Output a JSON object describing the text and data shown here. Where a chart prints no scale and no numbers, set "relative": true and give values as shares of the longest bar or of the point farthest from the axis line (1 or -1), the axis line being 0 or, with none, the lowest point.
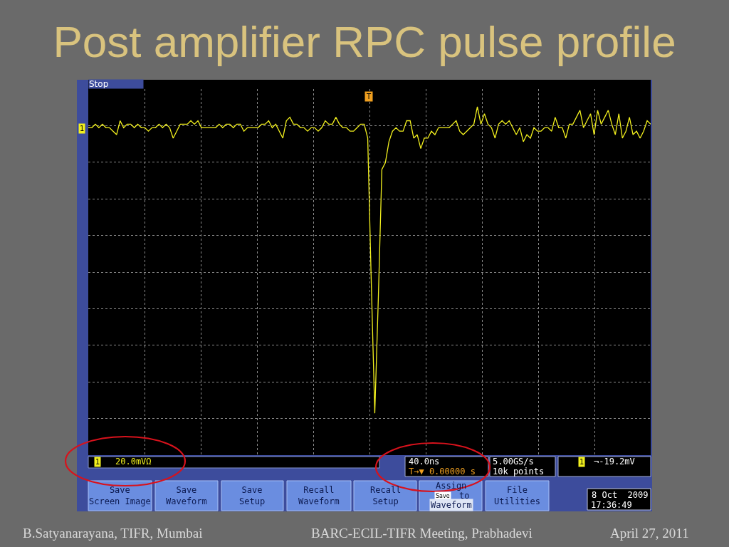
{
  "chart_data": {
    "type": "line",
    "title": "Post amplifier RPC pulse profile",
    "relative": true,
    "grid": true,
    "color": "#f2f01e",
    "categories": [
      null,
      null,
      null,
      null,
      null,
      null,
      null,
      null,
      null,
      null,
      null,
      null,
      null,
      null,
      null,
      null,
      null,
      null,
      null,
      null,
      null,
      null,
      null,
      null,
      null,
      null,
      null,
      null,
      null,
      null,
      null,
      null,
      null,
      null,
      null,
      null,
      null,
      null,
      null,
      null,
      null,
      null,
      null,
      null,
      null,
      null,
      null,
      null,
      null,
      null,
      null,
      null,
      null,
      null,
      null,
      null,
      null,
      null,
      null,
      null,
      null,
      null,
      null,
      null,
      null,
      null,
      null,
      null,
      null,
      null,
      null,
      null,
      null,
      null,
      null,
      null,
      null,
      null,
      null,
      null,
      null,
      null,
      null,
      null,
      null,
      null,
      null,
      null,
      null,
      null,
      null,
      null,
      null,
      null,
      null,
      null,
      null,
      null,
      null,
      null,
      null,
      null,
      null,
      null,
      null,
      null,
      null,
      null,
      null,
      null,
      null,
      null,
      null,
      null,
      null,
      null,
      null,
      null,
      null,
      null,
      null,
      null,
      null,
      null,
      null,
      null,
      null,
      null,
      null,
      null,
      null,
      null,
      null,
      null,
      null,
      null,
      null,
      null,
      null,
      null,
      null,
      null,
      null,
      null,
      null,
      null,
      null,
      null,
      null,
      null,
      null,
      null,
      null,
      null,
      null,
      null,
      null,
      null,
      null,
      null
    ],
    "values": [
      0.94,
      0.94,
      0.95,
      0.94,
      0.95,
      0.94,
      0.94,
      0.93,
      0.92,
      0.96,
      0.94,
      0.95,
      0.95,
      0.94,
      0.95,
      0.94,
      0.94,
      0.93,
      0.94,
      0.94,
      0.95,
      0.94,
      0.95,
      0.94,
      0.91,
      0.93,
      0.95,
      0.95,
      0.95,
      0.96,
      0.95,
      0.96,
      0.94,
      0.94,
      0.94,
      0.94,
      0.94,
      0.95,
      0.94,
      0.95,
      0.95,
      0.94,
      0.95,
      0.95,
      0.93,
      0.94,
      0.94,
      0.94,
      0.94,
      0.95,
      0.95,
      0.96,
      0.94,
      0.95,
      0.93,
      0.91,
      0.96,
      0.97,
      0.95,
      0.95,
      0.94,
      0.94,
      0.93,
      0.94,
      0.94,
      0.93,
      0.94,
      0.96,
      0.95,
      0.95,
      0.97,
      0.95,
      0.94,
      0.94,
      0.93,
      0.93,
      0.94,
      0.95,
      0.95,
      0.91,
      0.5,
      0.12,
      0.45,
      0.82,
      0.84,
      0.9,
      0.93,
      0.94,
      0.93,
      0.93,
      0.96,
      0.96,
      0.91,
      0.92,
      0.88,
      0.91,
      0.91,
      0.93,
      0.92,
      0.94,
      0.94,
      0.94,
      0.94,
      0.95,
      0.96,
      0.93,
      0.92,
      0.93,
      0.94,
      0.95,
      1,
      0.95,
      0.98,
      0.95,
      0.94,
      0.91,
      0.95,
      0.96,
      0.95,
      0.96,
      0.94,
      0.92,
      0.94,
      0.9,
      0.92,
      0.91,
      0.94,
      0.93,
      0.93,
      0.94,
      0.94,
      0.93,
      0.97,
      0.94,
      0.94,
      0.91,
      0.95,
      0.95,
      0.97,
      0.99,
      0.94,
      0.96,
      0.98,
      0.92,
      0.99,
      0.95,
      0.97,
      0.99,
      0.95,
      0.92,
      0.98,
      0.91,
      0.93,
      0.97,
      0.92,
      0.93,
      0.91,
      0.93,
      0.96,
      0.95
    ],
    "annotations": [
      "Stop",
      "T",
      "1",
      "1",
      "20.0mVΩ",
      "40.0ns",
      "5.00GS/s",
      "1",
      "¬-19.2mV",
      "T→▼ 0.00000 s",
      "10k points",
      "Save\nScreen Image",
      "Save\nWaveform",
      "Save\nSetup",
      "Recall\nWaveform",
      "Recall\nSetup",
      "Assign",
      "Save",
      "to",
      "Waveform",
      "File\nUtilities",
      "8 Oct  2009",
      "17:36:49",
      "B.Satyanarayana, TIFR, Mumbai",
      "BARC-ECIL-TIFR Meeting, Prabhadevi",
      "April 27, 2011"
    ]
  }
}
